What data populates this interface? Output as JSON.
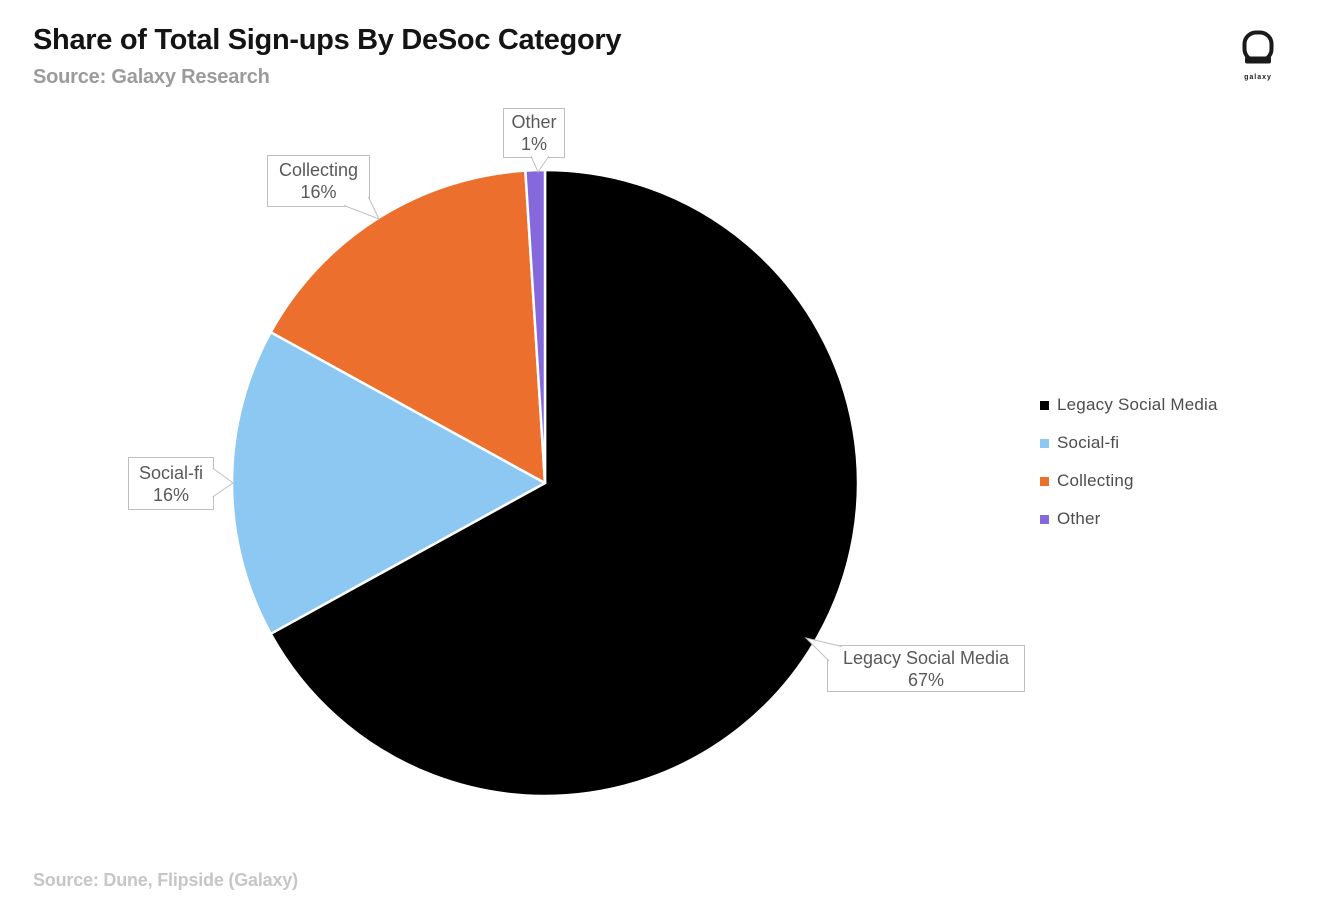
{
  "header": {
    "title": "Share of Total Sign-ups By DeSoc Category",
    "subtitle": "Source: Galaxy Research",
    "logo_text": "galaxy"
  },
  "footer": {
    "source": "Source: Dune, Flipside (Galaxy)"
  },
  "chart_data": {
    "type": "pie",
    "title": "Share of Total Sign-ups By DeSoc Category",
    "categories": [
      "Legacy Social Media",
      "Social-fi",
      "Collecting",
      "Other"
    ],
    "values": [
      67,
      16,
      16,
      1
    ],
    "unit": "percent",
    "colors": [
      "#000000",
      "#8DC8F2",
      "#EC6F2D",
      "#8468DC"
    ],
    "start_angle_deg": 0,
    "direction": "clockwise",
    "legend_position": "right",
    "data_labels": [
      "Legacy Social Media 67%",
      "Social-fi 16%",
      "Collecting 16%",
      "Other 1%"
    ]
  },
  "callouts": [
    {
      "line1": "Legacy Social Media",
      "line2": "67%"
    },
    {
      "line1": "Social-fi",
      "line2": "16%"
    },
    {
      "line1": "Collecting",
      "line2": "16%"
    },
    {
      "line1": "Other",
      "line2": "1%"
    }
  ],
  "legend": {
    "items": [
      {
        "label": "Legacy Social Media",
        "color": "#000000"
      },
      {
        "label": "Social-fi",
        "color": "#8DC8F2"
      },
      {
        "label": "Collecting",
        "color": "#EC6F2D"
      },
      {
        "label": "Other",
        "color": "#8468DC"
      }
    ]
  }
}
